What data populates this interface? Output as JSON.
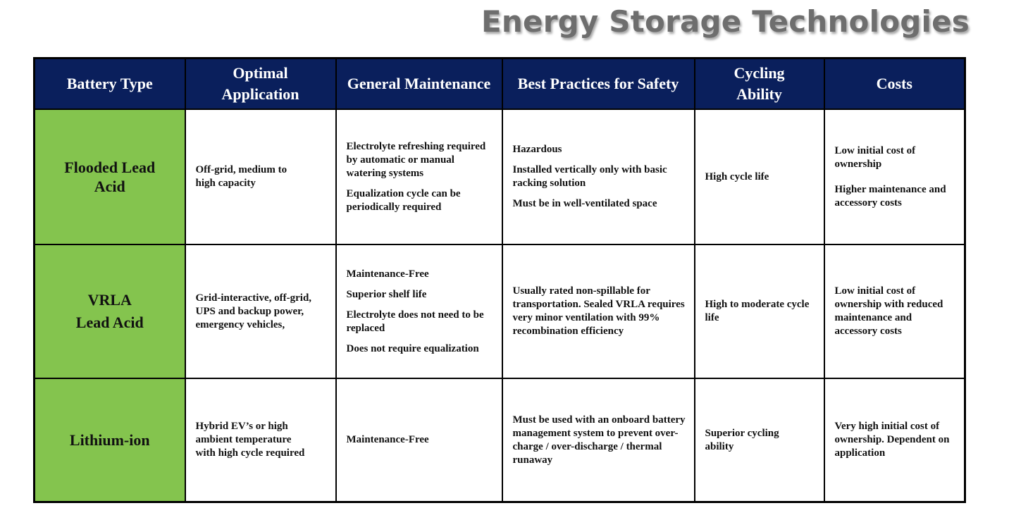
{
  "title": "Energy Storage Technologies",
  "headers": [
    "Battery Type",
    "Optimal Application",
    "General Maintenance",
    "Best Practices for Safety",
    "Cycling Ability",
    "Costs"
  ],
  "rows": [
    {
      "battery_type": [
        "Flooded Lead",
        "Acid"
      ],
      "application": [
        "Off-grid, medium to high capacity"
      ],
      "maintenance": [
        "Electrolyte refreshing required by automatic or manual watering systems",
        "Equalization cycle can be periodically required"
      ],
      "safety": [
        "Hazardous",
        "Installed vertically only with basic racking solution",
        "Must be in well-ventilated space"
      ],
      "cycling": [
        "High cycle life"
      ],
      "costs": [
        "Low initial cost of ownership",
        "Higher maintenance and accessory costs"
      ]
    },
    {
      "battery_type": [
        "VRLA",
        "Lead Acid"
      ],
      "application": [
        "Grid-interactive, off-grid, UPS and backup power, emergency vehicles,"
      ],
      "maintenance": [
        "Maintenance-Free",
        "Superior shelf life",
        "Electrolyte does not need to be replaced",
        "Does not require equalization"
      ],
      "safety": [
        "Usually rated non-spillable for transportation. Sealed VRLA requires very minor ventilation with 99% recombination efficiency"
      ],
      "cycling": [
        "High to moderate cycle life"
      ],
      "costs": [
        "Low initial cost of ownership with reduced maintenance and accessory costs"
      ]
    },
    {
      "battery_type": [
        "Lithium-ion"
      ],
      "application": [
        "Hybrid EV’s or high ambient temperature with high cycle required"
      ],
      "maintenance": [
        "Maintenance-Free"
      ],
      "safety": [
        "Must be used with an onboard battery management system to prevent over-charge / over-discharge / thermal runaway"
      ],
      "cycling": [
        "Superior cycling ability"
      ],
      "costs": [
        "Very high initial cost of ownership. Dependent on application"
      ]
    }
  ]
}
